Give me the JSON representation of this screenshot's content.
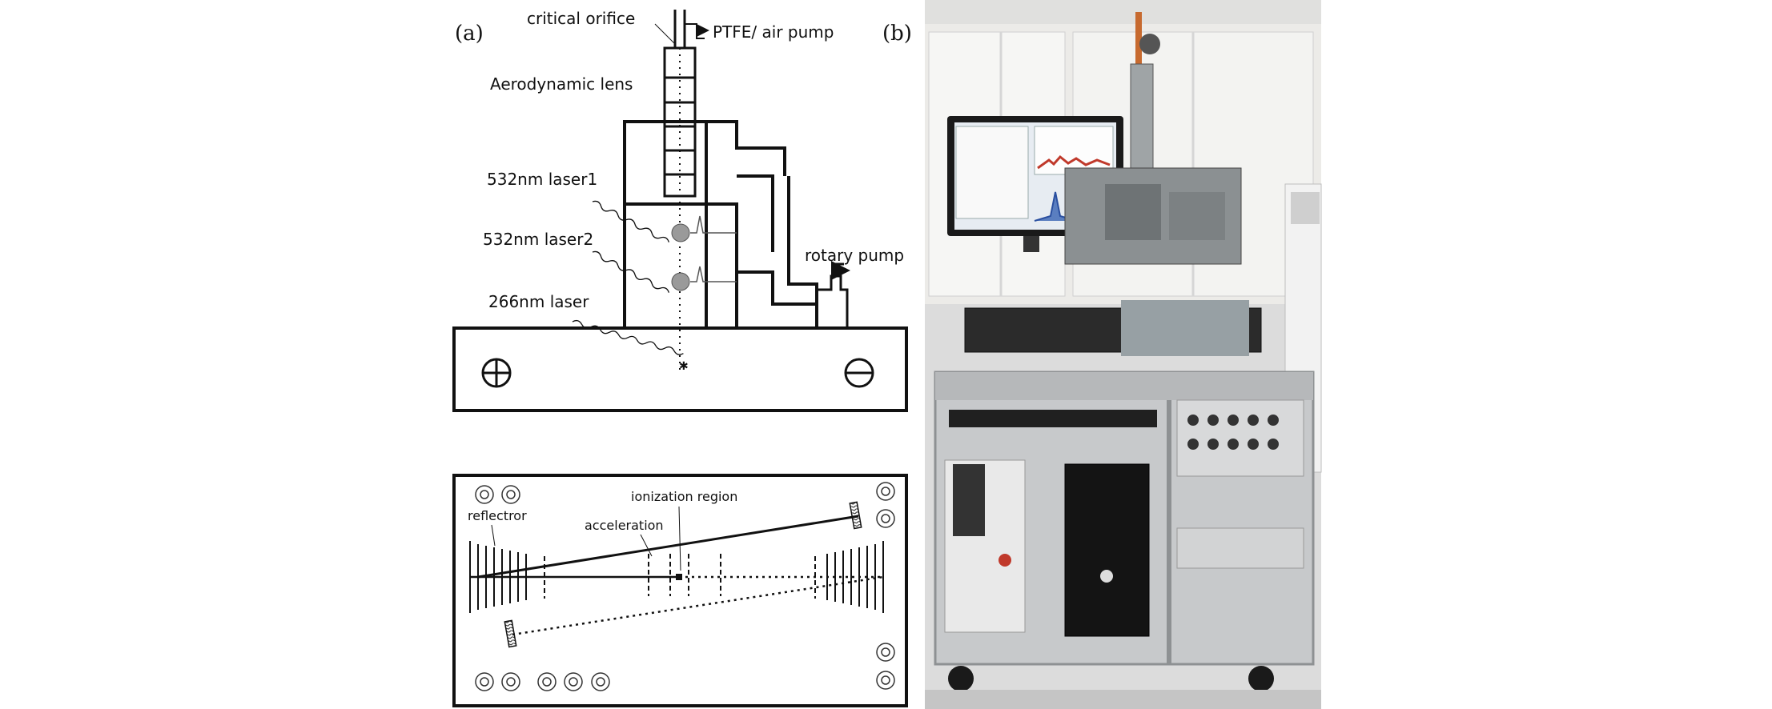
{
  "panel_a": {
    "tag": "(a)",
    "critical_orifice": "critical orifice",
    "ptfe_air_pump": "PTFE/ air pump",
    "aerodynamic_lens": "Aerodynamic lens",
    "laser1": "532nm  laser1",
    "laser2": "532nm  laser2",
    "laser3": "266nm  laser",
    "rotary_pump": "rotary pump"
  },
  "panel_tof": {
    "ionization_region": "ionization region",
    "reflector": "reflectror",
    "acceleration": "acceleration"
  },
  "panel_b": {
    "tag": "(b)"
  }
}
